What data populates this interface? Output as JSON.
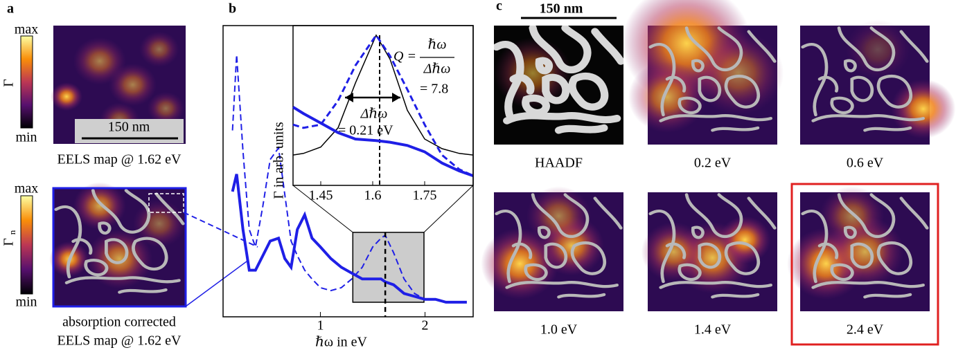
{
  "panel_labels": [
    "a",
    "b",
    "c"
  ],
  "panel_a": {
    "top": {
      "colorbar_max": "max",
      "colorbar_min": "min",
      "colorbar_label": "Γ",
      "scale_bar": "150 nm",
      "caption": "EELS map @ 1.62 eV"
    },
    "bottom": {
      "colorbar_max": "max",
      "colorbar_min": "min",
      "colorbar_label": "Γ",
      "colorbar_label_sub": "n",
      "caption_lines": [
        "absorption corrected",
        "EELS map @ 1.62 eV"
      ]
    }
  },
  "chart_data": {
    "type": "line",
    "xlabel": "ℏω in eV",
    "ylabel": "Γ in arb. units",
    "x": [
      0.13,
      0.16,
      0.2,
      0.26,
      0.32,
      0.38,
      0.45,
      0.52,
      0.6,
      0.66,
      0.72,
      0.78,
      0.85,
      0.92,
      1.0,
      1.1,
      1.2,
      1.3,
      1.4,
      1.5,
      1.58,
      1.62,
      1.7,
      1.8,
      1.9,
      2.0,
      2.1,
      2.2,
      2.3,
      2.4
    ],
    "series": [
      {
        "color": "#1f1fe6",
        "style": "dashed",
        "values": [
          null,
          0.64,
          0.9,
          0.57,
          0.3,
          0.24,
          0.38,
          0.54,
          0.58,
          0.42,
          0.26,
          0.21,
          0.16,
          0.13,
          0.1,
          0.09,
          0.1,
          0.13,
          0.17,
          0.24,
          0.27,
          0.28,
          0.22,
          0.13,
          0.08,
          0.06,
          null,
          null,
          null,
          null
        ]
      },
      {
        "color": "#1f1fe6",
        "style": "solid",
        "values": [
          null,
          0.43,
          0.49,
          0.3,
          0.16,
          0.16,
          0.21,
          0.26,
          0.27,
          0.2,
          0.17,
          0.3,
          0.35,
          0.27,
          0.24,
          0.2,
          0.17,
          0.15,
          0.13,
          0.13,
          0.13,
          0.12,
          0.11,
          0.08,
          0.07,
          0.06,
          0.06,
          0.05,
          0.05,
          0.05
        ]
      }
    ],
    "xlim": [
      0.07,
      2.46
    ],
    "ylim": [
      0,
      1
    ],
    "xticks": [
      1,
      2
    ],
    "marker_x": 1.62,
    "zoom_box": {
      "xlim": [
        1.31,
        1.99
      ],
      "ylim": [
        0.05,
        0.29
      ],
      "color": "#cccccc"
    },
    "inset": {
      "x": [
        1.37,
        1.4,
        1.45,
        1.5,
        1.55,
        1.61,
        1.65,
        1.7,
        1.75,
        1.8,
        1.85,
        1.89
      ],
      "series": [
        {
          "color": "#000000",
          "style": "fit",
          "values": [
            0.19,
            0.2,
            0.24,
            0.36,
            0.64,
            0.94,
            0.79,
            0.47,
            0.29,
            0.23,
            0.2,
            0.19
          ]
        },
        {
          "color": "#1f1fe6",
          "style": "dashed",
          "values": [
            0.38,
            0.36,
            0.38,
            0.53,
            0.75,
            0.94,
            0.81,
            0.6,
            0.38,
            0.19,
            0.1,
            0.06
          ]
        },
        {
          "color": "#1f1fe6",
          "style": "solid",
          "values": [
            0.49,
            0.45,
            0.39,
            0.33,
            0.29,
            0.28,
            0.27,
            0.25,
            0.21,
            0.14,
            0.09,
            0.06
          ]
        }
      ],
      "xlim": [
        1.37,
        1.89
      ],
      "ylim": [
        0,
        1
      ],
      "xticks": [
        1.45,
        1.6,
        1.75
      ],
      "width_arrow": {
        "x": [
          1.52,
          1.68
        ],
        "y": 0.55
      },
      "annotations": {
        "q_label": "Q =",
        "q_num": "ℏω",
        "q_den": "Δℏω",
        "q_value": "= 7.8",
        "width_label": "Δℏω",
        "width_value": "= 0.21 eV"
      }
    }
  },
  "panel_c": {
    "scale_bar": "150 nm",
    "images": [
      {
        "label": "HAADF"
      },
      {
        "label": "0.2 eV"
      },
      {
        "label": "0.6 eV"
      },
      {
        "label": "1.0 eV"
      },
      {
        "label": "1.4 eV"
      },
      {
        "label": "2.4 eV"
      }
    ],
    "highlight_index": 5,
    "highlight_color": "#e02020"
  }
}
